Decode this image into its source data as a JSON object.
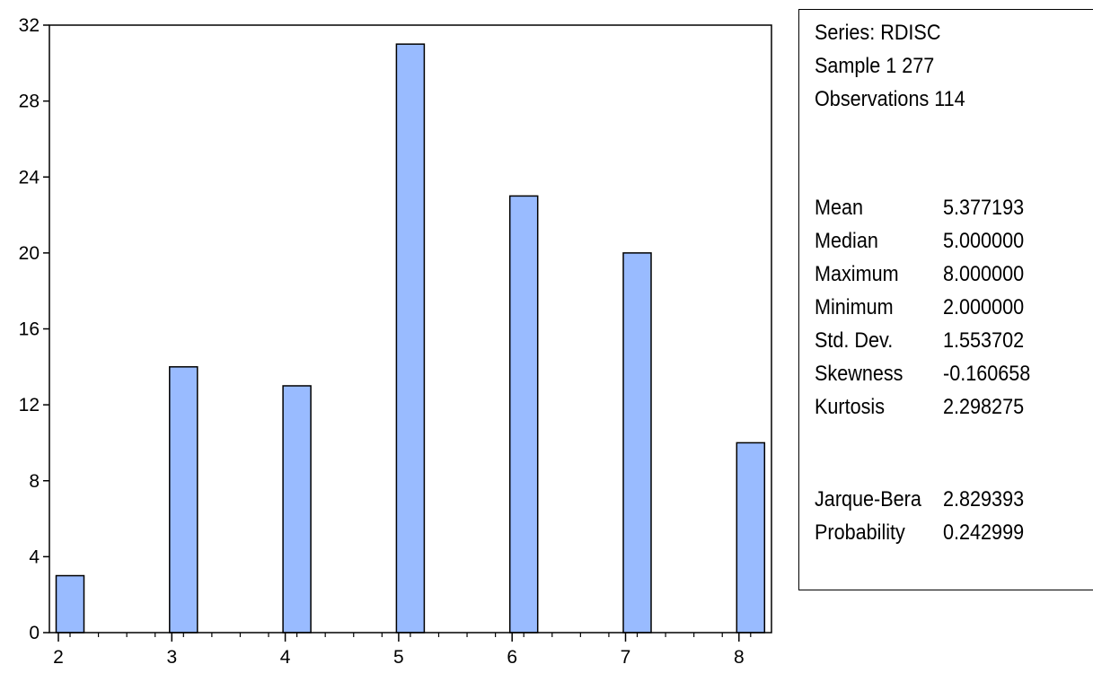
{
  "chart_data": {
    "type": "bar",
    "categories": [
      "2",
      "3",
      "4",
      "5",
      "6",
      "7",
      "8"
    ],
    "values": [
      3,
      14,
      13,
      31,
      23,
      20,
      10
    ],
    "title": "",
    "xlabel": "",
    "ylabel": "",
    "ylim": [
      0,
      32
    ],
    "yticks": [
      "0",
      "4",
      "8",
      "12",
      "16",
      "20",
      "24",
      "28",
      "32"
    ],
    "xticks": [
      "2",
      "3",
      "4",
      "5",
      "6",
      "7",
      "8"
    ],
    "grid": false,
    "bar_color": "#99bbff",
    "bar_edge_color": "#000000"
  },
  "stats": {
    "series": "Series: RDISC",
    "sample": "Sample 1 277",
    "observations": "Observations 114",
    "rows": [
      {
        "label": "Mean",
        "value": "5.377193"
      },
      {
        "label": "Median",
        "value": "5.000000"
      },
      {
        "label": "Maximum",
        "value": "8.000000"
      },
      {
        "label": "Minimum",
        "value": "2.000000"
      },
      {
        "label": "Std. Dev.",
        "value": "1.553702"
      },
      {
        "label": "Skewness",
        "value": "-0.160658"
      },
      {
        "label": "Kurtosis",
        "value": "2.298275"
      }
    ],
    "tests": [
      {
        "label": "Jarque-Bera",
        "value": "2.829393"
      },
      {
        "label": "Probability",
        "value": "0.242999"
      }
    ]
  }
}
